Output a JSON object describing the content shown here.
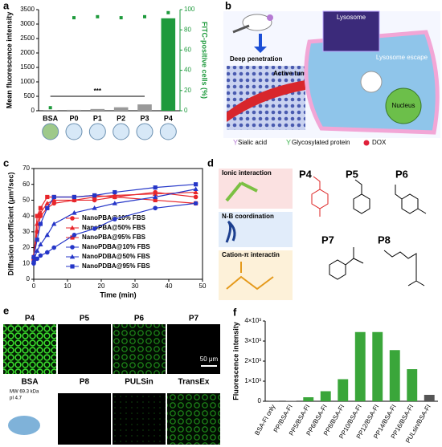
{
  "chart_data": [
    {
      "type": "bar",
      "panel": "a",
      "ylabel": "Mean fluorescence intensity",
      "y2label": "FITC-positive cells (%)",
      "categories": [
        "BSA",
        "P0",
        "P1",
        "P2",
        "P3",
        "P4"
      ],
      "series": [
        {
          "values": [
            5,
            30,
            60,
            120,
            220,
            3200
          ],
          "colors": [
            "#999999",
            "#999999",
            "#999999",
            "#999999",
            "#999999",
            "#1e9a3c"
          ]
        },
        {
          "type": "scatter",
          "axis": "y2",
          "color": "#1e9a3c",
          "values": [
            3,
            92,
            93,
            92,
            93,
            97
          ]
        }
      ],
      "ylim": [
        0,
        3500
      ],
      "yticks": [
        0,
        500,
        1000,
        1500,
        2000,
        2500,
        3000,
        3500
      ],
      "y2lim": [
        0,
        100
      ],
      "y2ticks": [
        0,
        20,
        40,
        60,
        80,
        100
      ],
      "annotation": "***"
    },
    {
      "type": "line",
      "panel": "c",
      "ylabel": "Diffusion coefficient (μm²/sec)",
      "xlabel": "Time (min)",
      "x": [
        0,
        1,
        2,
        4,
        6,
        12,
        18,
        24,
        36,
        48
      ],
      "series": [
        {
          "name": "NanoPBA@10% FBS",
          "color": "#e8262b",
          "marker": "circle",
          "values": [
            13,
            30,
            40,
            45,
            48,
            50,
            50,
            52,
            55,
            52
          ]
        },
        {
          "name": "NanoPBA@50% FBS",
          "color": "#e8262b",
          "marker": "triangle",
          "values": [
            15,
            35,
            42,
            48,
            50,
            50,
            52,
            53,
            54,
            55
          ]
        },
        {
          "name": "NanoPBA@95% FBS",
          "color": "#e8262b",
          "marker": "square",
          "values": [
            12,
            40,
            45,
            52,
            52,
            52,
            53,
            52,
            50,
            48
          ]
        },
        {
          "name": "NanoPDBA@10% FBS",
          "color": "#2536c8",
          "marker": "circle",
          "values": [
            10,
            13,
            15,
            17,
            20,
            28,
            32,
            38,
            45,
            48
          ]
        },
        {
          "name": "NanoPDBA@50% FBS",
          "color": "#2536c8",
          "marker": "triangle",
          "values": [
            12,
            18,
            22,
            28,
            35,
            42,
            45,
            48,
            52,
            57
          ]
        },
        {
          "name": "NanoPDBA@95% FBS",
          "color": "#2536c8",
          "marker": "square",
          "values": [
            14,
            25,
            35,
            45,
            52,
            52,
            53,
            55,
            58,
            60
          ]
        }
      ],
      "xlim": [
        0,
        50
      ],
      "xticks": [
        0,
        10,
        20,
        30,
        40,
        50
      ],
      "ylim": [
        0,
        70
      ],
      "yticks": [
        0,
        10,
        20,
        30,
        40,
        50,
        60,
        70
      ]
    },
    {
      "type": "bar",
      "panel": "f",
      "ylabel": "Fluorescence intensity",
      "categories": [
        "BSA-FI only",
        "PP/BSA-FI",
        "PP5/BSA-FI",
        "PP6/BSA-FI",
        "PP8/BSA-FI",
        "PP10/BSA-FI",
        "PP12/BSA-FI",
        "PP14/BSA-FI",
        "PP16/BSA-FI",
        "PULsin/BSA-FI"
      ],
      "values": [
        10,
        20,
        200,
        500,
        1100,
        3450,
        3450,
        2550,
        1600,
        320
      ],
      "colors": [
        "#555555",
        "#555555",
        "#3aa63a",
        "#3aa63a",
        "#3aa63a",
        "#3aa63a",
        "#3aa63a",
        "#3aa63a",
        "#3aa63a",
        "#555555"
      ],
      "ylim": [
        0,
        4000
      ],
      "yticks": [
        0,
        {
          "value": 1000,
          "label": "1×10³"
        },
        {
          "value": 2000,
          "label": "2×10³"
        },
        {
          "value": 3000,
          "label": "3×10³"
        },
        {
          "value": 4000,
          "label": "4×10³"
        }
      ]
    }
  ],
  "panel_b": {
    "letter": "b",
    "deep": "Deep penetration",
    "targeting": "Active tumor targeting",
    "lysosome": "Lysosome",
    "escape": "Lysosome escape",
    "nucleus": "Nucleus",
    "legend": [
      "Sialic acid",
      "Glycosylated protein",
      "DOX"
    ]
  },
  "panel_d": {
    "letter": "d",
    "boxes": [
      "Ionic interaction",
      "N-B coordination",
      "Cation-π interactin"
    ],
    "labels": [
      "P4",
      "P5",
      "P6",
      "P7",
      "P8"
    ]
  },
  "panel_e": {
    "letter": "e",
    "labels": [
      "P4",
      "P5",
      "P6",
      "P7",
      "BSA",
      "P8",
      "PULSin",
      "TransEx"
    ],
    "scale": "50 μm",
    "mw": "MW 69.3 kDa",
    "pi": "pI 4.7"
  }
}
